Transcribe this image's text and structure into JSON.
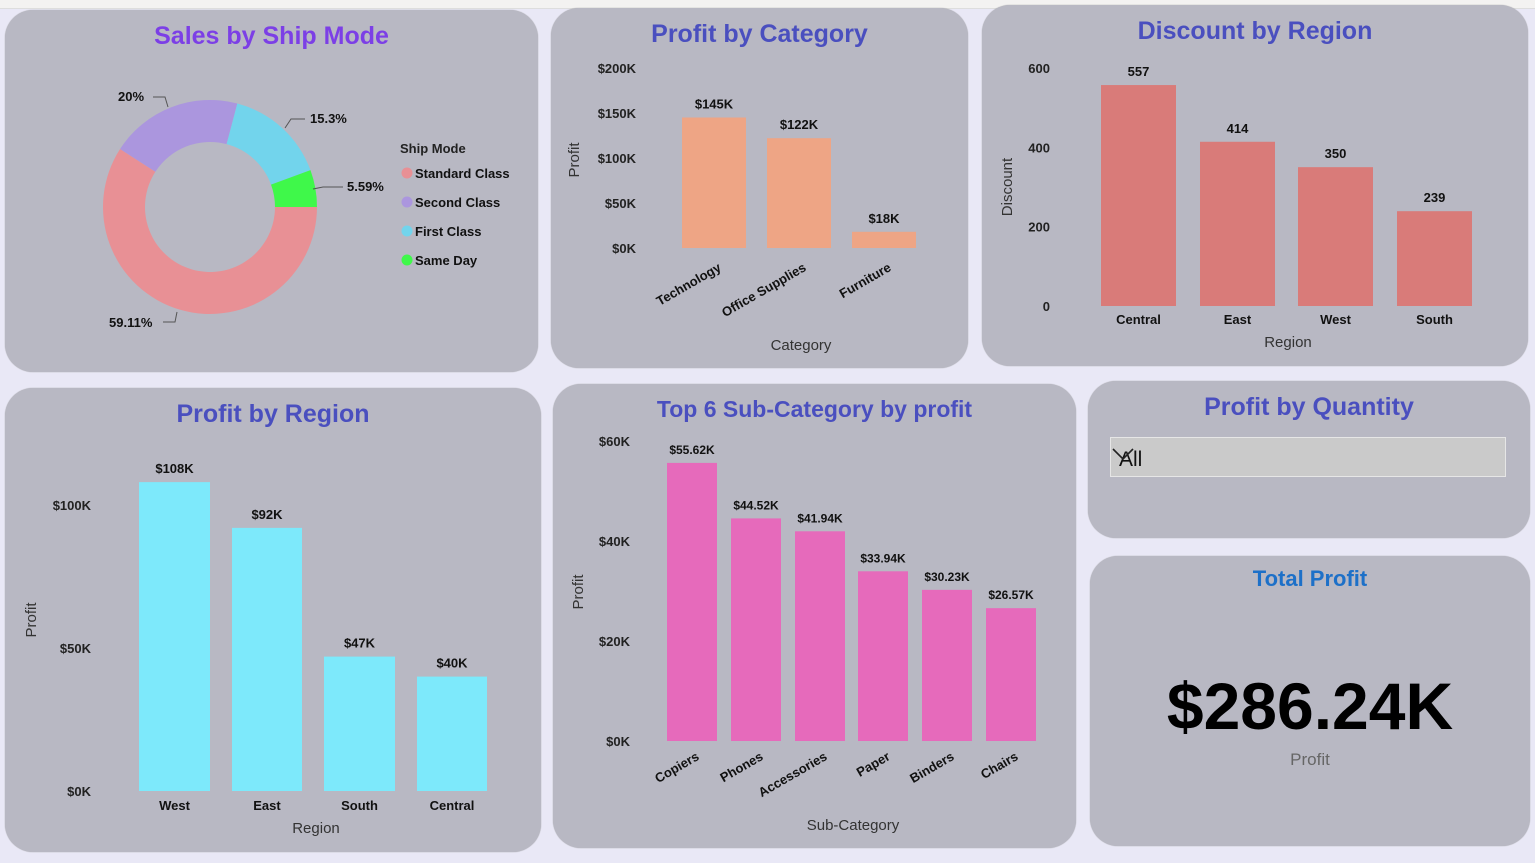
{
  "colors": {
    "standard": "#e89095",
    "second": "#ab96de",
    "first": "#72d4ec",
    "same_day": "#3ff84a",
    "category_bar": "#eea585",
    "discount_bar": "#d97b79",
    "region_bar": "#7de9fb",
    "subcat_bar": "#e66abb"
  },
  "chart_data": [
    {
      "id": "ship",
      "type": "pie",
      "title": "Sales by Ship Mode",
      "legend_title": "Ship Mode",
      "legend_position": "right",
      "categories": [
        "Standard Class",
        "Second Class",
        "First Class",
        "Same Day"
      ],
      "values": [
        59.11,
        20,
        15.3,
        5.59
      ],
      "labels": [
        "59.11%",
        "20%",
        "15.3%",
        "5.59%"
      ]
    },
    {
      "id": "category",
      "type": "bar",
      "title": "Profit by Category",
      "xlabel": "Category",
      "ylabel": "Profit",
      "ylim": [
        0,
        200000
      ],
      "yticks": [
        "$0K",
        "$50K",
        "$100K",
        "$150K",
        "$200K"
      ],
      "categories": [
        "Technology",
        "Office Supplies",
        "Furniture"
      ],
      "values": [
        145000,
        122000,
        18000
      ],
      "labels": [
        "$145K",
        "$122K",
        "$18K"
      ]
    },
    {
      "id": "discount",
      "type": "bar",
      "title": "Discount by Region",
      "xlabel": "Region",
      "ylabel": "Discount",
      "ylim": [
        0,
        600
      ],
      "yticks": [
        "0",
        "200",
        "400",
        "600"
      ],
      "categories": [
        "Central",
        "East",
        "West",
        "South"
      ],
      "values": [
        557,
        414,
        350,
        239
      ],
      "labels": [
        "557",
        "414",
        "350",
        "239"
      ]
    },
    {
      "id": "region",
      "type": "bar",
      "title": "Profit by Region",
      "xlabel": "Region",
      "ylabel": "Profit",
      "ylim": [
        0,
        100000
      ],
      "yticks": [
        "$0K",
        "$50K",
        "$100K"
      ],
      "categories": [
        "West",
        "East",
        "South",
        "Central"
      ],
      "values": [
        108000,
        92000,
        47000,
        40000
      ],
      "labels": [
        "$108K",
        "$92K",
        "$47K",
        "$40K"
      ]
    },
    {
      "id": "subcat",
      "type": "bar",
      "title": "Top 6 Sub-Category by profit",
      "xlabel": "Sub-Category",
      "ylabel": "Profit",
      "ylim": [
        0,
        60000
      ],
      "yticks": [
        "$0K",
        "$20K",
        "$40K",
        "$60K"
      ],
      "categories": [
        "Copiers",
        "Phones",
        "Accessories",
        "Paper",
        "Binders",
        "Chairs"
      ],
      "values": [
        55620,
        44520,
        41940,
        33940,
        30230,
        26570
      ],
      "labels": [
        "$55.62K",
        "$44.52K",
        "$41.94K",
        "$33.94K",
        "$30.23K",
        "$26.57K"
      ]
    }
  ],
  "slicer": {
    "title": "Profit by Quantity",
    "value": "All"
  },
  "kpi": {
    "title": "Total Profit",
    "value": "$286.24K",
    "label": "Profit"
  }
}
